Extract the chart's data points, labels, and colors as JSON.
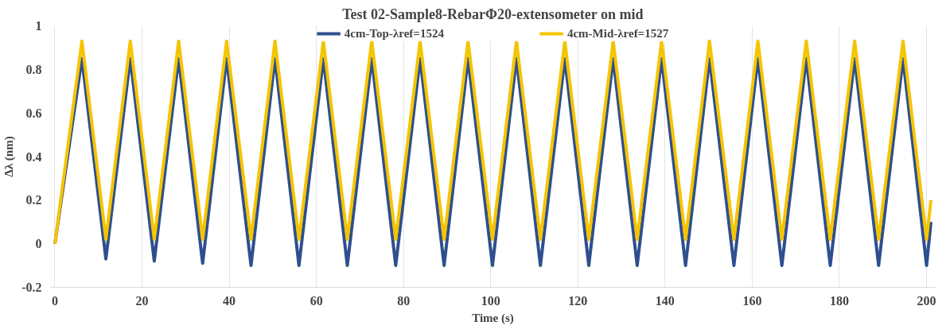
{
  "chart_data": {
    "type": "line",
    "title": "Test 02-Sample8-RebarΦ20-extensometer on mid",
    "xlabel": "Time (s)",
    "ylabel": "Δλ (nm)",
    "x": [
      0,
      6.2,
      11.7,
      17.3,
      22.8,
      28.4,
      33.9,
      39.4,
      45.0,
      50.5,
      56.0,
      61.6,
      67.1,
      72.7,
      78.2,
      83.8,
      89.3,
      94.8,
      100.4,
      105.9,
      111.4,
      117.0,
      122.5,
      128.1,
      133.6,
      139.2,
      144.7,
      150.2,
      155.8,
      161.3,
      166.8,
      172.4,
      177.9,
      183.5,
      189.0,
      194.6,
      200.0,
      201.0
    ],
    "series": [
      {
        "name": "4cm-Top-λref=1524",
        "color": "#2e4f8f",
        "values": [
          0,
          0.85,
          -0.07,
          0.85,
          -0.08,
          0.85,
          -0.09,
          0.85,
          -0.1,
          0.85,
          -0.1,
          0.85,
          -0.1,
          0.85,
          -0.1,
          0.85,
          -0.1,
          0.85,
          -0.1,
          0.85,
          -0.1,
          0.85,
          -0.1,
          0.85,
          -0.1,
          0.85,
          -0.1,
          0.85,
          -0.1,
          0.85,
          -0.1,
          0.85,
          -0.1,
          0.85,
          -0.1,
          0.85,
          -0.1,
          0.1
        ]
      },
      {
        "name": "4cm-Mid-λref=1527",
        "color": "#f5c400",
        "values": [
          0,
          0.93,
          0.02,
          0.93,
          0.02,
          0.93,
          0.02,
          0.93,
          0.02,
          0.93,
          0.02,
          0.93,
          0.02,
          0.93,
          0.02,
          0.93,
          0.02,
          0.93,
          0.02,
          0.93,
          0.02,
          0.93,
          0.02,
          0.93,
          0.02,
          0.93,
          0.02,
          0.93,
          0.02,
          0.93,
          0.02,
          0.93,
          0.02,
          0.93,
          0.02,
          0.93,
          0.02,
          0.2
        ]
      }
    ],
    "xlim": [
      -1,
      202
    ],
    "xticks": [
      0,
      20,
      40,
      60,
      80,
      100,
      120,
      140,
      160,
      180,
      200
    ],
    "ylim": [
      -0.2,
      1
    ],
    "yticks": [
      {
        "value": -0.2,
        "label": "-0.2"
      },
      {
        "value": 0,
        "label": "0"
      },
      {
        "value": 0.2,
        "label": "0.2"
      },
      {
        "value": 0.4,
        "label": "0.4"
      },
      {
        "value": 0.6,
        "label": "0.6"
      },
      {
        "value": 0.8,
        "label": "0.8"
      },
      {
        "value": 1,
        "label": "1"
      }
    ],
    "grid": "x",
    "legend": "top",
    "line_style": "solid",
    "marker": "none"
  }
}
